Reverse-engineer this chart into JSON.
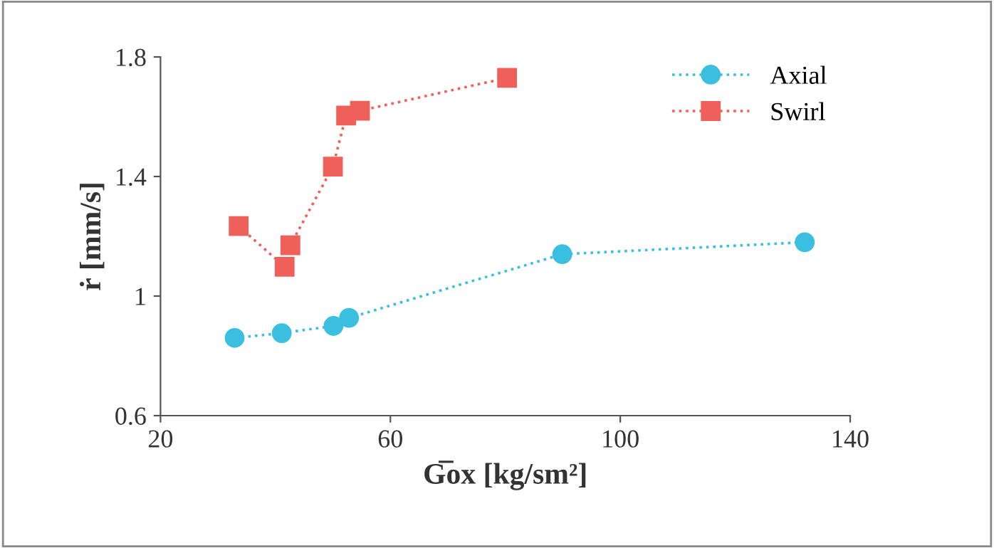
{
  "chart_data": {
    "type": "line",
    "xlabel": "G̅ox [kg/sm²]",
    "ylabel": "ṙ [mm/s]",
    "xlim": [
      20,
      140
    ],
    "xticks": [
      20,
      60,
      100,
      140
    ],
    "ylim": [
      0.6,
      1.8
    ],
    "yticks": [
      0.6,
      1.4,
      1.8,
      {
        "value": 1,
        "label": "1"
      }
    ],
    "grid": false,
    "legend": "top right",
    "line_style": "dotted",
    "series": [
      {
        "name": "Axial",
        "color": "#3bbfe0",
        "marker": "circle",
        "x": [
          32.9,
          41.1,
          50.1,
          52.8,
          89.9,
          132.1
        ],
        "values": [
          0.86,
          0.876,
          0.9,
          0.927,
          1.14,
          1.18
        ]
      },
      {
        "name": "Swirl",
        "color": "#f0605a",
        "marker": "square",
        "x": [
          33.6,
          41.6,
          42.6,
          50.0,
          52.3,
          54.7,
          80.3
        ],
        "values": [
          1.234,
          1.098,
          1.17,
          1.433,
          1.604,
          1.62,
          1.73
        ]
      }
    ]
  }
}
